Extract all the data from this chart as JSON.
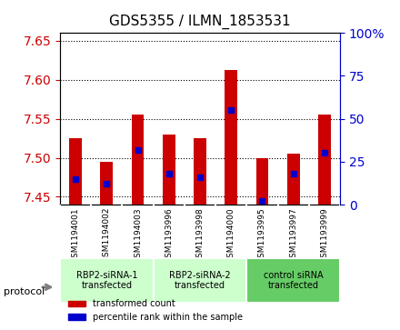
{
  "title": "GDS5355 / ILMN_1853531",
  "samples": [
    "GSM1194001",
    "GSM1194002",
    "GSM1194003",
    "GSM1193996",
    "GSM1193998",
    "GSM1194000",
    "GSM1193995",
    "GSM1193997",
    "GSM1193999"
  ],
  "red_values": [
    7.525,
    7.495,
    7.555,
    7.53,
    7.525,
    7.612,
    7.5,
    7.505,
    7.555
  ],
  "blue_values": [
    15,
    12,
    32,
    18,
    16,
    55,
    2,
    18,
    30
  ],
  "ylim_left": [
    7.44,
    7.66
  ],
  "ylim_right": [
    0,
    100
  ],
  "yticks_left": [
    7.45,
    7.5,
    7.55,
    7.6,
    7.65
  ],
  "yticks_right": [
    0,
    25,
    50,
    75,
    100
  ],
  "groups": [
    {
      "label": "RBP2-siRNA-1\ntransfected",
      "start": 0,
      "end": 3,
      "color": "#ccffcc"
    },
    {
      "label": "RBP2-siRNA-2\ntransfected",
      "start": 3,
      "end": 6,
      "color": "#ccffcc"
    },
    {
      "label": "control siRNA\ntransfected",
      "start": 6,
      "end": 9,
      "color": "#66cc66"
    }
  ],
  "protocol_label": "protocol",
  "red_color": "#cc0000",
  "blue_color": "#0000cc",
  "bar_width": 0.4,
  "bar_bottom": 7.44,
  "left_tick_color": "#cc0000",
  "right_tick_color": "#0000cc",
  "legend_red": "transformed count",
  "legend_blue": "percentile rank within the sample",
  "bg_color": "#e8e8e8",
  "group_separator_color": "#888888"
}
